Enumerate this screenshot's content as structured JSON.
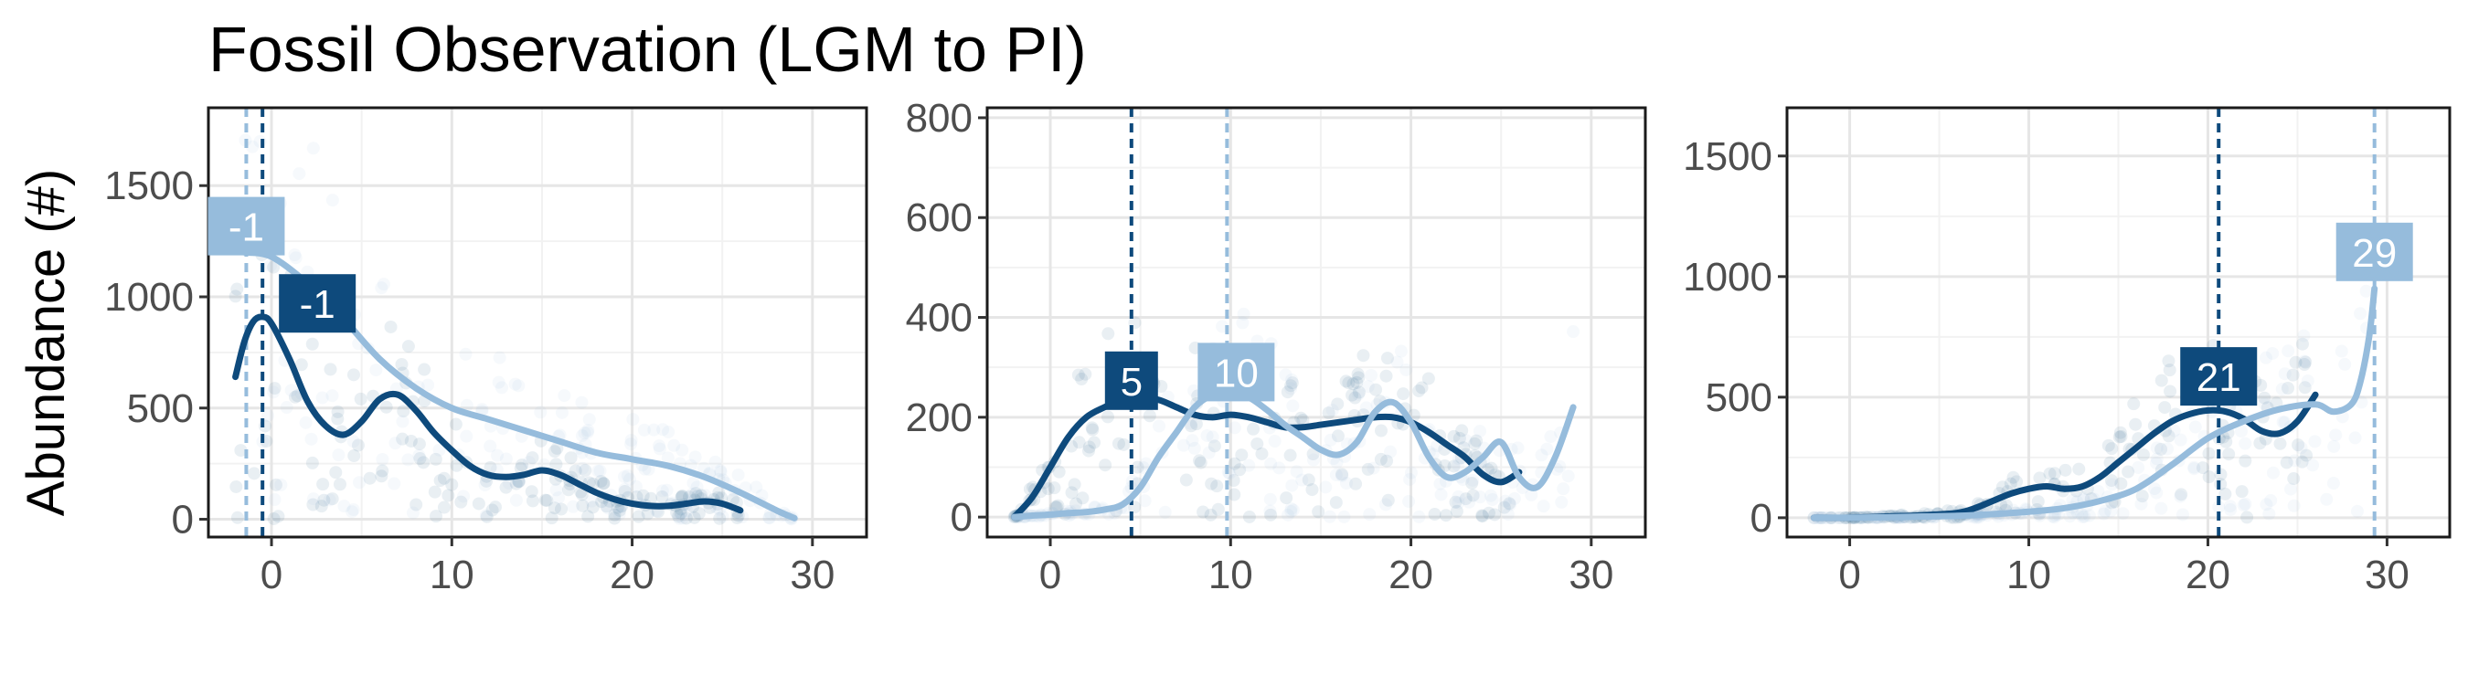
{
  "chart_data": {
    "title": "Fossil Observation (LGM to PI)",
    "ylabel": "Abundance (#)",
    "colors": {
      "dark": "#0e4a7c",
      "light": "#96bcdc"
    },
    "panels": [
      {
        "xlim": [
          -3.5,
          33
        ],
        "ylim": [
          -80,
          1850
        ],
        "xticks": [
          0,
          10,
          20,
          30
        ],
        "yticks": [
          0,
          500,
          1000,
          1500
        ],
        "vlines": [
          {
            "series": "dark",
            "x": -0.5,
            "label": "-1"
          },
          {
            "series": "light",
            "x": -1.4,
            "label": "-1"
          }
        ],
        "series": [
          {
            "key": "dark",
            "x": [
              -2,
              -1.5,
              -1,
              -0.5,
              0,
              1,
              2,
              3,
              4,
              5,
              6,
              7,
              8,
              9,
              10,
              11,
              12,
              13,
              14,
              15,
              16,
              17,
              18,
              19,
              20,
              21,
              22,
              23,
              24,
              25,
              26
            ],
            "y": [
              640,
              800,
              890,
              910,
              880,
              720,
              530,
              420,
              380,
              440,
              540,
              560,
              490,
              390,
              310,
              240,
              200,
              190,
              200,
              220,
              200,
              160,
              120,
              90,
              70,
              60,
              60,
              70,
              80,
              70,
              40
            ]
          },
          {
            "key": "light",
            "x": [
              -1.5,
              0,
              2,
              4,
              6,
              8,
              10,
              12,
              14,
              16,
              18,
              20,
              22,
              24,
              26,
              28,
              29
            ],
            "y": [
              1200,
              1180,
              1060,
              900,
              720,
              590,
              500,
              450,
              400,
              350,
              300,
              270,
              240,
              190,
              120,
              40,
              5
            ]
          }
        ]
      },
      {
        "xlim": [
          -3.5,
          33
        ],
        "ylim": [
          -40,
          820
        ],
        "xticks": [
          0,
          10,
          20,
          30
        ],
        "yticks": [
          0,
          200,
          400,
          600,
          800
        ],
        "vlines": [
          {
            "series": "dark",
            "x": 4.5,
            "label": "5"
          },
          {
            "series": "light",
            "x": 9.8,
            "label": "10"
          }
        ],
        "series": [
          {
            "key": "dark",
            "x": [
              -2,
              -1,
              0,
              1,
              2,
              3,
              4,
              5,
              6,
              7,
              8,
              9,
              10,
              11,
              12,
              13,
              14,
              15,
              16,
              17,
              18,
              19,
              20,
              21,
              22,
              23,
              24,
              25,
              26
            ],
            "y": [
              0,
              40,
              100,
              160,
              200,
              220,
              235,
              240,
              235,
              220,
              205,
              200,
              205,
              200,
              190,
              180,
              180,
              185,
              190,
              195,
              200,
              200,
              190,
              170,
              145,
              120,
              85,
              70,
              90
            ]
          },
          {
            "key": "light",
            "x": [
              -2,
              -1,
              0,
              1,
              2,
              3,
              4,
              5,
              6,
              7,
              8,
              9,
              10,
              11,
              12,
              13,
              14,
              15,
              16,
              17,
              18,
              19,
              20,
              21,
              22,
              23,
              24,
              25,
              26,
              27,
              28,
              29
            ],
            "y": [
              0,
              3,
              5,
              8,
              10,
              15,
              25,
              60,
              120,
              170,
              220,
              245,
              250,
              240,
              215,
              185,
              160,
              135,
              125,
              150,
              210,
              230,
              190,
              120,
              80,
              90,
              120,
              150,
              80,
              60,
              120,
              220
            ]
          }
        ]
      },
      {
        "xlim": [
          -3.5,
          33.5
        ],
        "ylim": [
          -80,
          1700
        ],
        "xticks": [
          0,
          10,
          20,
          30
        ],
        "yticks": [
          0,
          500,
          1000,
          1500
        ],
        "vlines": [
          {
            "series": "dark",
            "x": 20.6,
            "label": "21"
          },
          {
            "series": "light",
            "x": 29.3,
            "label": "29"
          }
        ],
        "series": [
          {
            "key": "dark",
            "x": [
              -2,
              0,
              2,
              4,
              6,
              7,
              8,
              9,
              10,
              11,
              12,
              13,
              14,
              15,
              16,
              17,
              18,
              19,
              20,
              21,
              22,
              23,
              24,
              25,
              26
            ],
            "y": [
              0,
              0,
              5,
              10,
              20,
              40,
              70,
              100,
              120,
              130,
              120,
              130,
              170,
              230,
              290,
              350,
              400,
              430,
              445,
              440,
              410,
              360,
              350,
              400,
              510
            ]
          },
          {
            "key": "light",
            "x": [
              -2,
              0,
              2,
              4,
              6,
              8,
              10,
              12,
              14,
              16,
              18,
              20,
              22,
              24,
              26,
              27,
              28,
              28.5,
              29,
              29.3
            ],
            "y": [
              0,
              0,
              2,
              5,
              8,
              15,
              25,
              40,
              70,
              120,
              220,
              330,
              400,
              450,
              470,
              440,
              470,
              560,
              750,
              950
            ]
          }
        ]
      }
    ]
  }
}
